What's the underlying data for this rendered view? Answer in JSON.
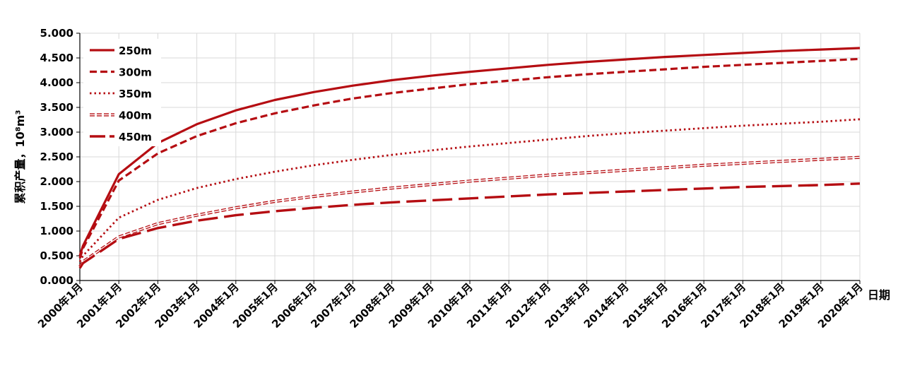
{
  "chart_data": {
    "type": "line",
    "xlabel": "日期",
    "ylabel": "累积产量，10⁸m³",
    "ylim": [
      0,
      5
    ],
    "y_ticks": [
      "0.000",
      "0.500",
      "1.000",
      "1.500",
      "2.000",
      "2.500",
      "3.000",
      "3.500",
      "4.000",
      "4.500",
      "5.000"
    ],
    "x_ticks": [
      "2000年1月",
      "2001年1月",
      "2002年1月",
      "2003年1月",
      "2004年1月",
      "2005年1月",
      "2006年1月",
      "2007年1月",
      "2008年1月",
      "2009年1月",
      "2010年1月",
      "2011年1月",
      "2012年1月",
      "2013年1月",
      "2014年1月",
      "2015年1月",
      "2016年1月",
      "2017年1月",
      "2018年1月",
      "2019年1月",
      "2020年1月"
    ],
    "x_years": [
      2000,
      2001,
      2002,
      2003,
      2004,
      2005,
      2006,
      2007,
      2008,
      2009,
      2010,
      2011,
      2012,
      2013,
      2014,
      2015,
      2016,
      2017,
      2018,
      2019,
      2020
    ],
    "grid": true,
    "legend_position": "top-left",
    "color": "#b50d12",
    "series": [
      {
        "name": "250m",
        "style": "solid",
        "x": [
          2000,
          2000.08,
          2001,
          2002,
          2003,
          2004,
          2005,
          2006,
          2007,
          2008,
          2009,
          2010,
          2011,
          2012,
          2013,
          2014,
          2015,
          2016,
          2017,
          2018,
          2019,
          2020
        ],
        "values": [
          0.5,
          0.7,
          2.15,
          2.78,
          3.16,
          3.44,
          3.65,
          3.81,
          3.94,
          4.05,
          4.14,
          4.22,
          4.29,
          4.36,
          4.42,
          4.47,
          4.52,
          4.56,
          4.6,
          4.64,
          4.67,
          4.7
        ]
      },
      {
        "name": "300m",
        "style": "dash",
        "x": [
          2000,
          2000.08,
          2001,
          2002,
          2003,
          2004,
          2005,
          2006,
          2007,
          2008,
          2009,
          2010,
          2011,
          2012,
          2013,
          2014,
          2015,
          2016,
          2017,
          2018,
          2019,
          2020
        ],
        "values": [
          0.45,
          0.65,
          2.02,
          2.57,
          2.92,
          3.18,
          3.38,
          3.54,
          3.68,
          3.79,
          3.88,
          3.97,
          4.04,
          4.11,
          4.17,
          4.22,
          4.27,
          4.32,
          4.36,
          4.4,
          4.44,
          4.48
        ]
      },
      {
        "name": "350m",
        "style": "dot",
        "x": [
          2000,
          2000.08,
          2001,
          2002,
          2003,
          2004,
          2005,
          2006,
          2007,
          2008,
          2009,
          2010,
          2011,
          2012,
          2013,
          2014,
          2015,
          2016,
          2017,
          2018,
          2019,
          2020
        ],
        "values": [
          0.38,
          0.5,
          1.27,
          1.63,
          1.87,
          2.05,
          2.2,
          2.33,
          2.44,
          2.54,
          2.63,
          2.71,
          2.78,
          2.85,
          2.92,
          2.98,
          3.03,
          3.08,
          3.13,
          3.17,
          3.21,
          3.26
        ]
      },
      {
        "name": "400m",
        "style": "double",
        "x": [
          2000,
          2000.08,
          2001,
          2002,
          2003,
          2004,
          2005,
          2006,
          2007,
          2008,
          2009,
          2010,
          2011,
          2012,
          2013,
          2014,
          2015,
          2016,
          2017,
          2018,
          2019,
          2020
        ],
        "values": [
          0.28,
          0.38,
          0.88,
          1.15,
          1.32,
          1.47,
          1.6,
          1.7,
          1.79,
          1.87,
          1.94,
          2.01,
          2.07,
          2.13,
          2.18,
          2.23,
          2.28,
          2.33,
          2.37,
          2.41,
          2.45,
          2.49
        ]
      },
      {
        "name": "450m",
        "style": "longdash",
        "x": [
          2000,
          2000.08,
          2001,
          2002,
          2003,
          2004,
          2005,
          2006,
          2007,
          2008,
          2009,
          2010,
          2011,
          2012,
          2013,
          2014,
          2015,
          2016,
          2017,
          2018,
          2019,
          2020
        ],
        "values": [
          0.25,
          0.35,
          0.84,
          1.06,
          1.21,
          1.32,
          1.4,
          1.47,
          1.53,
          1.58,
          1.62,
          1.66,
          1.7,
          1.74,
          1.77,
          1.8,
          1.83,
          1.86,
          1.89,
          1.91,
          1.93,
          1.96
        ]
      }
    ]
  }
}
